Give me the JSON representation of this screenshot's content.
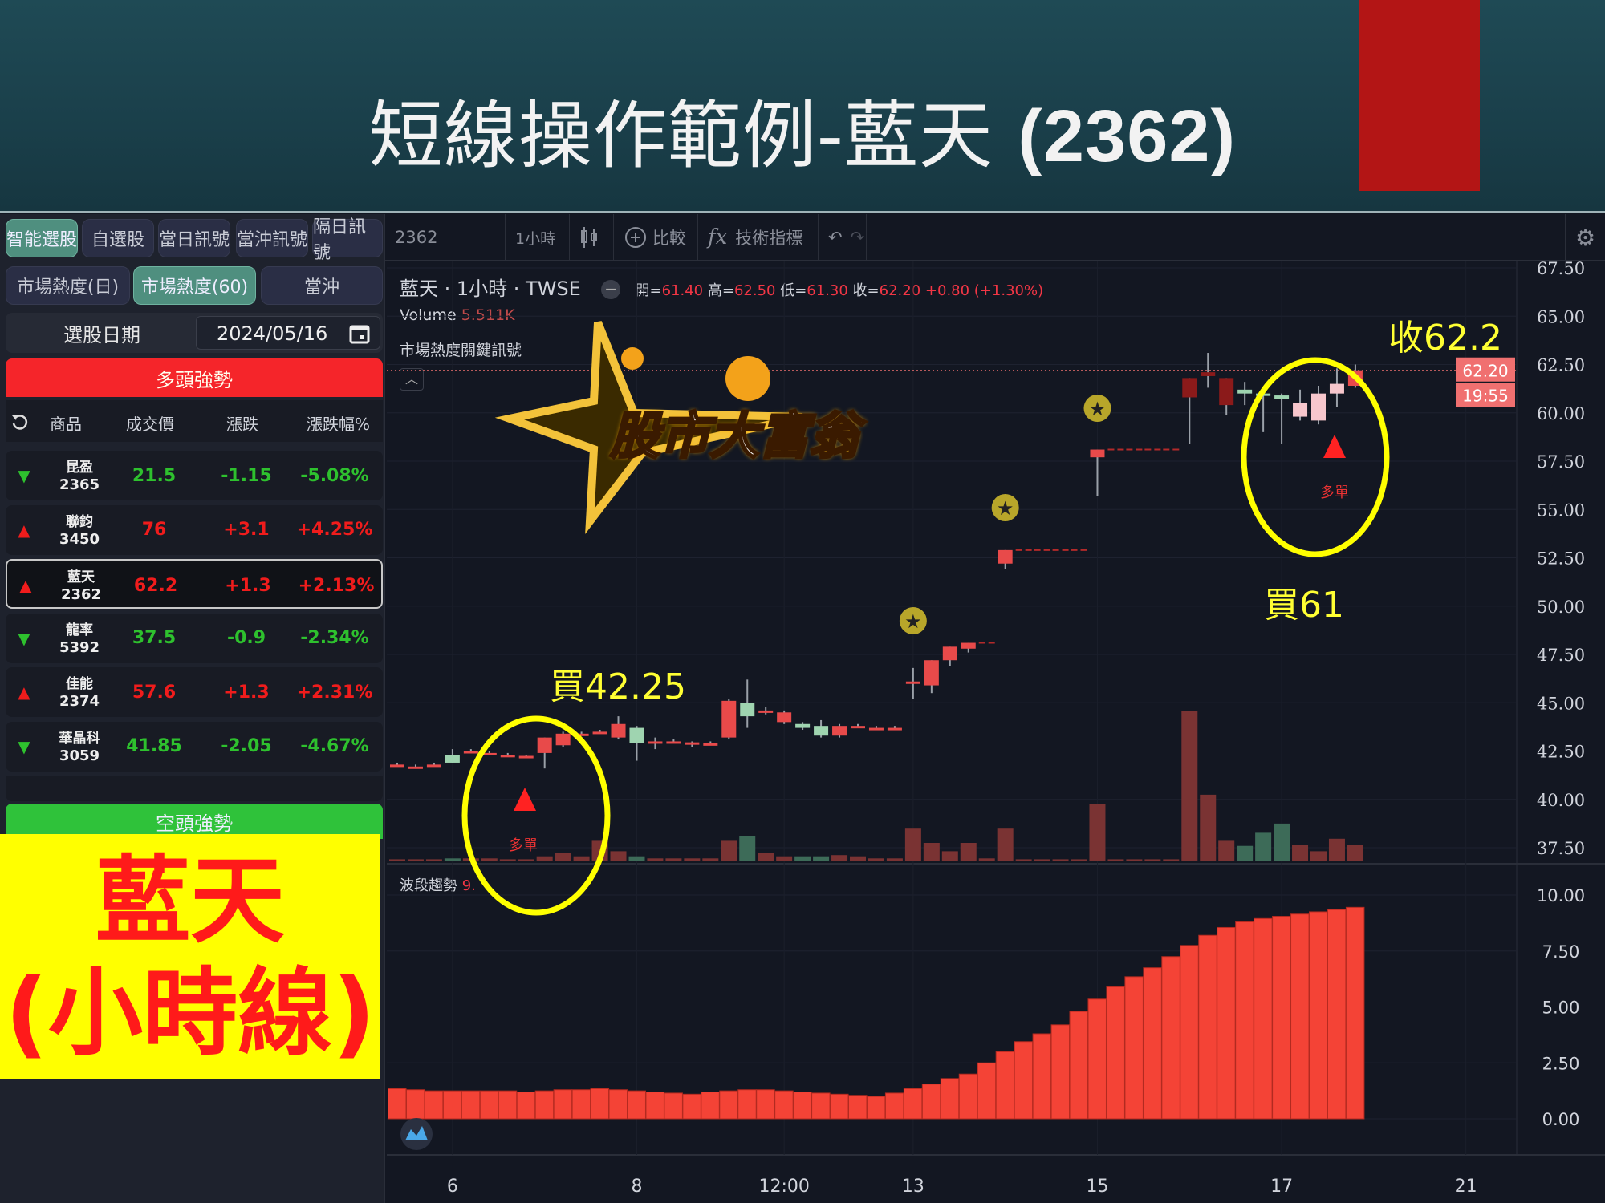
{
  "header": {
    "title_cjk": "短線操作範例-藍天",
    "title_code": "(2362)"
  },
  "left": {
    "tabs": [
      "智能選股",
      "自選股",
      "當日訊號",
      "當沖訊號",
      "隔日訊號"
    ],
    "subtabs": [
      "市場熱度(日)",
      "市場熱度(60)",
      "當沖"
    ],
    "date_label": "選股日期",
    "date_value": "2024/05/16",
    "bull_title": "多頭強勢",
    "bear_title": "空頭強勢",
    "columns": [
      "商品",
      "成交價",
      "漲跌",
      "漲跌幅%"
    ],
    "rows": [
      {
        "name": "昆盈",
        "code": "2365",
        "price": "21.5",
        "change": "-1.15",
        "pct": "-5.08%",
        "dir": "down"
      },
      {
        "name": "聯鈞",
        "code": "3450",
        "price": "76",
        "change": "+3.1",
        "pct": "+4.25%",
        "dir": "up"
      },
      {
        "name": "藍天",
        "code": "2362",
        "price": "62.2",
        "change": "+1.3",
        "pct": "+2.13%",
        "dir": "up",
        "selected": true
      },
      {
        "name": "龍率",
        "code": "5392",
        "price": "37.5",
        "change": "-0.9",
        "pct": "-2.34%",
        "dir": "down"
      },
      {
        "name": "佳能",
        "code": "2374",
        "price": "57.6",
        "change": "+1.3",
        "pct": "+2.31%",
        "dir": "up"
      },
      {
        "name": "華晶科",
        "code": "3059",
        "price": "41.85",
        "change": "-2.05",
        "pct": "-4.67%",
        "dir": "down"
      }
    ],
    "overlay_line1": "藍天",
    "overlay_line2": "(小時線)"
  },
  "toolbar": {
    "symbol": "2362",
    "interval": "1小時",
    "compare": "比較",
    "indicators": "技術指標"
  },
  "legend": {
    "title": "藍天 · 1小時 · TWSE",
    "open_label": "開=",
    "open": "61.40",
    "high_label": "高=",
    "high": "62.50",
    "low_label": "低=",
    "low": "61.30",
    "close_label": "收=",
    "close": "62.20",
    "change": "+0.80 (+1.30%)",
    "volume_label": "Volume",
    "volume": "5.511K",
    "signal_label": "市場熱度關鍵訊號",
    "indicator_label": "波段趨勢",
    "indicator_value": "9."
  },
  "annotations": {
    "buy1": "買42.25",
    "buy2": "買61",
    "close": "收62.2",
    "long1": "多單",
    "long2": "多單",
    "logo": "股市大富翁"
  },
  "colors": {
    "up": "#f23645",
    "down": "#3f9e6e",
    "indicator": "#f44336",
    "highlight": "#ffff00"
  },
  "chart_data": [
    {
      "type": "candlestick",
      "ylim": [
        37.5,
        67.5
      ],
      "yticks": [
        "67.50",
        "65.00",
        "62.50",
        "60.00",
        "57.50",
        "55.00",
        "52.50",
        "50.00",
        "47.50",
        "45.00",
        "42.50",
        "40.00",
        "37.50"
      ],
      "last_price": "62.20",
      "last_time": "19:55",
      "xticks": [
        {
          "slot": 4,
          "label": "6"
        },
        {
          "slot": 14,
          "label": "8"
        },
        {
          "slot": 22,
          "label": "12:00"
        },
        {
          "slot": 29,
          "label": "13"
        },
        {
          "slot": 39,
          "label": "15"
        },
        {
          "slot": 49,
          "label": "17"
        },
        {
          "slot": 59,
          "label": "21"
        }
      ],
      "ohlc": [
        [
          41.8,
          41.9,
          41.7,
          41.8
        ],
        [
          41.7,
          41.8,
          41.6,
          41.7
        ],
        [
          41.8,
          41.9,
          41.7,
          41.8
        ],
        [
          42.3,
          42.6,
          41.9,
          41.9
        ],
        [
          42.5,
          42.6,
          42.4,
          42.5
        ],
        [
          42.4,
          42.5,
          42.3,
          42.4
        ],
        [
          42.3,
          42.4,
          42.2,
          42.3
        ],
        [
          42.25,
          42.3,
          42.2,
          42.25
        ],
        [
          42.4,
          43.2,
          41.6,
          43.2
        ],
        [
          42.8,
          43.5,
          42.7,
          43.4
        ],
        [
          43.4,
          43.5,
          43.3,
          43.4
        ],
        [
          43.5,
          43.6,
          43.4,
          43.5
        ],
        [
          43.2,
          44.3,
          43.1,
          43.9
        ],
        [
          43.7,
          43.8,
          42.0,
          42.9
        ],
        [
          43.0,
          43.2,
          42.6,
          43.0
        ],
        [
          43.0,
          43.1,
          42.9,
          43.0
        ],
        [
          42.9,
          43.0,
          42.7,
          42.95
        ],
        [
          42.9,
          43.0,
          42.8,
          42.9
        ],
        [
          43.2,
          45.2,
          43.1,
          45.1
        ],
        [
          45.0,
          46.2,
          43.7,
          44.3
        ],
        [
          44.6,
          44.8,
          44.4,
          44.6
        ],
        [
          44.0,
          44.6,
          43.9,
          44.5
        ],
        [
          43.9,
          44.0,
          43.6,
          43.7
        ],
        [
          43.8,
          44.1,
          43.2,
          43.3
        ],
        [
          43.3,
          43.9,
          43.2,
          43.8
        ],
        [
          43.8,
          43.9,
          43.7,
          43.8
        ],
        [
          43.7,
          43.8,
          43.6,
          43.7
        ],
        [
          43.7,
          43.8,
          43.6,
          43.7
        ],
        [
          46.0,
          46.8,
          45.2,
          46.1
        ],
        [
          45.9,
          47.2,
          45.5,
          47.2
        ],
        [
          47.2,
          47.9,
          46.9,
          47.9
        ],
        [
          47.8,
          48.1,
          47.6,
          48.1
        ],
        [
          48.1,
          48.1,
          48.1,
          48.1
        ],
        [
          52.2,
          52.9,
          51.9,
          52.9
        ],
        [
          52.9,
          52.9,
          52.9,
          52.9
        ],
        [
          52.9,
          52.9,
          52.9,
          52.9
        ],
        [
          52.9,
          52.9,
          52.9,
          52.9
        ],
        [
          52.9,
          52.9,
          52.9,
          52.9
        ],
        [
          57.7,
          58.1,
          55.7,
          58.1
        ],
        [
          58.1,
          58.1,
          58.1,
          58.1
        ],
        [
          58.1,
          58.1,
          58.1,
          58.1
        ],
        [
          58.1,
          58.1,
          58.1,
          58.1
        ],
        [
          58.1,
          58.1,
          58.1,
          58.1
        ],
        [
          60.8,
          61.8,
          58.4,
          61.8
        ],
        [
          61.9,
          63.1,
          61.3,
          62.1
        ],
        [
          60.4,
          61.8,
          59.9,
          61.8
        ],
        [
          61.2,
          61.6,
          60.4,
          61.0
        ],
        [
          61.0,
          61.3,
          59.0,
          60.9
        ],
        [
          60.9,
          61.0,
          58.4,
          60.7
        ],
        [
          59.8,
          61.2,
          59.6,
          60.5
        ],
        [
          59.6,
          61.4,
          59.4,
          61.0
        ],
        [
          61.0,
          62.3,
          60.3,
          61.5
        ],
        [
          61.4,
          62.5,
          61.3,
          62.2
        ]
      ],
      "volume_k": [
        0.7,
        0.7,
        0.7,
        1.0,
        1.0,
        1.0,
        0.7,
        0.7,
        1.7,
        2.8,
        1.7,
        6.9,
        3.4,
        1.7,
        1.0,
        1.0,
        1.0,
        1.0,
        6.9,
        8.6,
        2.8,
        1.7,
        1.7,
        1.7,
        2.1,
        1.7,
        1.0,
        1.0,
        11.0,
        6.2,
        3.4,
        6.2,
        1.0,
        11.0,
        0.7,
        0.7,
        0.7,
        0.7,
        19.3,
        0.7,
        0.7,
        0.7,
        0.7,
        50.6,
        22.4,
        6.9,
        5.2,
        9.6,
        12.7,
        5.5,
        3.4,
        7.6,
        5.511
      ]
    },
    {
      "type": "bar",
      "name": "波段趨勢",
      "ylim": [
        0,
        10
      ],
      "yticks": [
        "10.00",
        "7.50",
        "5.00",
        "2.50",
        "0.00"
      ],
      "values": [
        1.35,
        1.3,
        1.25,
        1.25,
        1.25,
        1.25,
        1.25,
        1.2,
        1.25,
        1.3,
        1.3,
        1.35,
        1.3,
        1.25,
        1.2,
        1.15,
        1.1,
        1.2,
        1.25,
        1.3,
        1.3,
        1.25,
        1.2,
        1.15,
        1.1,
        1.05,
        1.0,
        1.15,
        1.35,
        1.55,
        1.8,
        2.0,
        2.5,
        3.0,
        3.45,
        3.8,
        4.2,
        4.8,
        5.35,
        5.9,
        6.35,
        6.75,
        7.25,
        7.75,
        8.2,
        8.55,
        8.8,
        8.95,
        9.05,
        9.15,
        9.25,
        9.35,
        9.45
      ]
    }
  ]
}
